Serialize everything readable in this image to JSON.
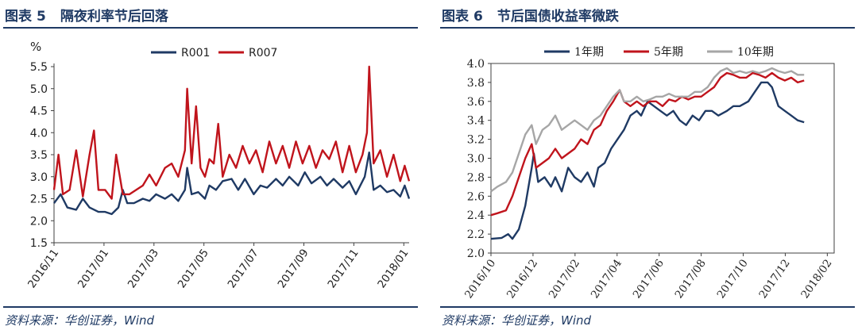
{
  "colors": {
    "navy": "#1f3a64",
    "red": "#c0141c",
    "gray": "#a6a6a6"
  },
  "charts": [
    {
      "title_prefix": "图表",
      "title_num": "5",
      "title_text": "隔夜利率节后回落",
      "source": "资料来源：华创证券，Wind"
    },
    {
      "title_prefix": "图表",
      "title_num": "6",
      "title_text": "节后国债收益率微跌",
      "source": "资料来源：华创证券，Wind"
    }
  ],
  "chart_data": [
    {
      "type": "line",
      "title": "隔夜利率节后回落",
      "ylabel": "%",
      "ylim": [
        1.5,
        5.5
      ],
      "yticks": [
        "1.5",
        "2.0",
        "2.5",
        "3.0",
        "3.5",
        "4.0",
        "4.5",
        "5.0",
        "5.5"
      ],
      "xticks": [
        "2016/11",
        "2017/01",
        "2017/03",
        "2017/05",
        "2017/07",
        "2017/09",
        "2017/11",
        "2018/01"
      ],
      "xrange": [
        0,
        16
      ],
      "grid": false,
      "legend": "top",
      "series": [
        {
          "name": "R001",
          "color": "#1f3a64",
          "points": [
            [
              0,
              2.4
            ],
            [
              0.3,
              2.6
            ],
            [
              0.6,
              2.3
            ],
            [
              1,
              2.25
            ],
            [
              1.3,
              2.5
            ],
            [
              1.6,
              2.3
            ],
            [
              2,
              2.2
            ],
            [
              2.3,
              2.2
            ],
            [
              2.6,
              2.15
            ],
            [
              2.9,
              2.3
            ],
            [
              3.1,
              2.7
            ],
            [
              3.3,
              2.4
            ],
            [
              3.6,
              2.4
            ],
            [
              4,
              2.5
            ],
            [
              4.3,
              2.45
            ],
            [
              4.6,
              2.6
            ],
            [
              5,
              2.5
            ],
            [
              5.3,
              2.6
            ],
            [
              5.6,
              2.45
            ],
            [
              5.9,
              2.7
            ],
            [
              6,
              3.2
            ],
            [
              6.2,
              2.6
            ],
            [
              6.5,
              2.65
            ],
            [
              6.8,
              2.5
            ],
            [
              7,
              2.8
            ],
            [
              7.3,
              2.7
            ],
            [
              7.6,
              2.9
            ],
            [
              8,
              2.95
            ],
            [
              8.3,
              2.7
            ],
            [
              8.6,
              2.95
            ],
            [
              9,
              2.6
            ],
            [
              9.3,
              2.8
            ],
            [
              9.6,
              2.75
            ],
            [
              10,
              2.95
            ],
            [
              10.3,
              2.8
            ],
            [
              10.6,
              3.0
            ],
            [
              11,
              2.8
            ],
            [
              11.3,
              3.1
            ],
            [
              11.6,
              2.85
            ],
            [
              12,
              3.0
            ],
            [
              12.3,
              2.8
            ],
            [
              12.6,
              2.95
            ],
            [
              13,
              2.75
            ],
            [
              13.3,
              2.9
            ],
            [
              13.6,
              2.6
            ],
            [
              14,
              3.0
            ],
            [
              14.2,
              3.55
            ],
            [
              14.4,
              2.7
            ],
            [
              14.7,
              2.8
            ],
            [
              15,
              2.65
            ],
            [
              15.3,
              2.7
            ],
            [
              15.6,
              2.55
            ],
            [
              15.8,
              2.8
            ],
            [
              16,
              2.5
            ]
          ]
        },
        {
          "name": "R007",
          "color": "#c0141c",
          "points": [
            [
              0,
              2.7
            ],
            [
              0.2,
              3.5
            ],
            [
              0.4,
              2.6
            ],
            [
              0.7,
              2.7
            ],
            [
              1,
              3.6
            ],
            [
              1.3,
              2.55
            ],
            [
              1.6,
              3.5
            ],
            [
              1.8,
              4.05
            ],
            [
              2,
              2.7
            ],
            [
              2.3,
              2.7
            ],
            [
              2.6,
              2.5
            ],
            [
              2.8,
              3.5
            ],
            [
              3.1,
              2.6
            ],
            [
              3.4,
              2.6
            ],
            [
              3.7,
              2.7
            ],
            [
              4,
              2.8
            ],
            [
              4.3,
              3.05
            ],
            [
              4.6,
              2.8
            ],
            [
              5,
              3.2
            ],
            [
              5.3,
              3.3
            ],
            [
              5.6,
              3.0
            ],
            [
              5.9,
              3.6
            ],
            [
              6,
              5.0
            ],
            [
              6.2,
              3.3
            ],
            [
              6.4,
              4.6
            ],
            [
              6.6,
              3.2
            ],
            [
              6.8,
              3.0
            ],
            [
              7,
              3.4
            ],
            [
              7.2,
              3.3
            ],
            [
              7.4,
              4.2
            ],
            [
              7.6,
              3.0
            ],
            [
              7.9,
              3.5
            ],
            [
              8.2,
              3.2
            ],
            [
              8.5,
              3.7
            ],
            [
              8.8,
              3.3
            ],
            [
              9.1,
              3.6
            ],
            [
              9.4,
              3.1
            ],
            [
              9.7,
              3.8
            ],
            [
              10,
              3.3
            ],
            [
              10.3,
              3.7
            ],
            [
              10.6,
              3.2
            ],
            [
              10.9,
              3.8
            ],
            [
              11.2,
              3.3
            ],
            [
              11.5,
              3.7
            ],
            [
              11.8,
              3.2
            ],
            [
              12.1,
              3.6
            ],
            [
              12.4,
              3.4
            ],
            [
              12.7,
              3.8
            ],
            [
              13,
              3.1
            ],
            [
              13.3,
              3.7
            ],
            [
              13.6,
              3.1
            ],
            [
              13.9,
              3.5
            ],
            [
              14.1,
              4.0
            ],
            [
              14.2,
              5.5
            ],
            [
              14.4,
              3.3
            ],
            [
              14.7,
              3.6
            ],
            [
              15,
              3.0
            ],
            [
              15.3,
              3.5
            ],
            [
              15.6,
              2.9
            ],
            [
              15.8,
              3.25
            ],
            [
              16,
              2.9
            ]
          ]
        }
      ]
    },
    {
      "type": "line",
      "title": "节后国债收益率微跌",
      "ylim": [
        2.0,
        4.0
      ],
      "yticks": [
        "2.0",
        "2.2",
        "2.4",
        "2.6",
        "2.8",
        "3.0",
        "3.2",
        "3.4",
        "3.6",
        "3.8",
        "4.0"
      ],
      "xticks": [
        "2016/10",
        "2016/12",
        "2017/02",
        "2017/04",
        "2017/06",
        "2017/08",
        "2017/10",
        "2017/12",
        "2018/02"
      ],
      "xrange": [
        0,
        16
      ],
      "grid": false,
      "legend": "top",
      "series": [
        {
          "name": "1年期",
          "color": "#1f3a64",
          "points": [
            [
              0,
              2.15
            ],
            [
              0.5,
              2.16
            ],
            [
              0.8,
              2.2
            ],
            [
              1,
              2.15
            ],
            [
              1.3,
              2.25
            ],
            [
              1.6,
              2.5
            ],
            [
              1.9,
              2.9
            ],
            [
              2,
              3.05
            ],
            [
              2.2,
              2.75
            ],
            [
              2.5,
              2.8
            ],
            [
              2.8,
              2.7
            ],
            [
              3,
              2.8
            ],
            [
              3.3,
              2.65
            ],
            [
              3.6,
              2.9
            ],
            [
              3.9,
              2.8
            ],
            [
              4.2,
              2.75
            ],
            [
              4.5,
              2.85
            ],
            [
              4.8,
              2.7
            ],
            [
              5,
              2.9
            ],
            [
              5.3,
              2.95
            ],
            [
              5.6,
              3.1
            ],
            [
              5.9,
              3.2
            ],
            [
              6.2,
              3.3
            ],
            [
              6.5,
              3.45
            ],
            [
              6.8,
              3.5
            ],
            [
              7,
              3.45
            ],
            [
              7.3,
              3.6
            ],
            [
              7.6,
              3.55
            ],
            [
              7.9,
              3.5
            ],
            [
              8.2,
              3.45
            ],
            [
              8.5,
              3.5
            ],
            [
              8.8,
              3.4
            ],
            [
              9.1,
              3.35
            ],
            [
              9.4,
              3.45
            ],
            [
              9.7,
              3.4
            ],
            [
              10,
              3.5
            ],
            [
              10.3,
              3.5
            ],
            [
              10.6,
              3.45
            ],
            [
              11,
              3.5
            ],
            [
              11.3,
              3.55
            ],
            [
              11.6,
              3.55
            ],
            [
              12,
              3.6
            ],
            [
              12.3,
              3.7
            ],
            [
              12.6,
              3.8
            ],
            [
              12.9,
              3.8
            ],
            [
              13.1,
              3.75
            ],
            [
              13.4,
              3.55
            ],
            [
              13.7,
              3.5
            ],
            [
              14,
              3.45
            ],
            [
              14.3,
              3.4
            ],
            [
              14.6,
              3.38
            ]
          ]
        },
        {
          "name": "5年期",
          "color": "#c0141c",
          "points": [
            [
              0,
              2.4
            ],
            [
              0.3,
              2.42
            ],
            [
              0.7,
              2.45
            ],
            [
              1,
              2.6
            ],
            [
              1.3,
              2.8
            ],
            [
              1.6,
              3.0
            ],
            [
              1.9,
              3.15
            ],
            [
              2.1,
              2.9
            ],
            [
              2.4,
              2.95
            ],
            [
              2.7,
              3.0
            ],
            [
              3,
              3.1
            ],
            [
              3.3,
              3.0
            ],
            [
              3.6,
              3.05
            ],
            [
              3.9,
              3.1
            ],
            [
              4.2,
              3.2
            ],
            [
              4.5,
              3.15
            ],
            [
              4.8,
              3.3
            ],
            [
              5.1,
              3.35
            ],
            [
              5.4,
              3.5
            ],
            [
              5.7,
              3.6
            ],
            [
              6,
              3.72
            ],
            [
              6.2,
              3.6
            ],
            [
              6.5,
              3.55
            ],
            [
              6.8,
              3.6
            ],
            [
              7.1,
              3.55
            ],
            [
              7.4,
              3.6
            ],
            [
              7.7,
              3.6
            ],
            [
              8,
              3.55
            ],
            [
              8.3,
              3.62
            ],
            [
              8.6,
              3.6
            ],
            [
              8.9,
              3.65
            ],
            [
              9.2,
              3.62
            ],
            [
              9.5,
              3.65
            ],
            [
              9.8,
              3.65
            ],
            [
              10.1,
              3.7
            ],
            [
              10.4,
              3.75
            ],
            [
              10.7,
              3.85
            ],
            [
              11,
              3.9
            ],
            [
              11.3,
              3.88
            ],
            [
              11.6,
              3.85
            ],
            [
              11.9,
              3.85
            ],
            [
              12.2,
              3.9
            ],
            [
              12.5,
              3.88
            ],
            [
              12.8,
              3.85
            ],
            [
              13.1,
              3.9
            ],
            [
              13.4,
              3.85
            ],
            [
              13.7,
              3.82
            ],
            [
              14,
              3.85
            ],
            [
              14.3,
              3.8
            ],
            [
              14.6,
              3.82
            ]
          ]
        },
        {
          "name": "10年期",
          "color": "#a6a6a6",
          "points": [
            [
              0,
              2.65
            ],
            [
              0.3,
              2.7
            ],
            [
              0.7,
              2.75
            ],
            [
              1,
              2.85
            ],
            [
              1.3,
              3.05
            ],
            [
              1.6,
              3.25
            ],
            [
              1.9,
              3.35
            ],
            [
              2.1,
              3.15
            ],
            [
              2.4,
              3.3
            ],
            [
              2.7,
              3.35
            ],
            [
              3,
              3.45
            ],
            [
              3.3,
              3.3
            ],
            [
              3.6,
              3.35
            ],
            [
              3.9,
              3.4
            ],
            [
              4.2,
              3.35
            ],
            [
              4.5,
              3.3
            ],
            [
              4.8,
              3.4
            ],
            [
              5.1,
              3.45
            ],
            [
              5.4,
              3.55
            ],
            [
              5.7,
              3.65
            ],
            [
              6,
              3.72
            ],
            [
              6.2,
              3.6
            ],
            [
              6.5,
              3.6
            ],
            [
              6.8,
              3.65
            ],
            [
              7.1,
              3.6
            ],
            [
              7.4,
              3.62
            ],
            [
              7.7,
              3.65
            ],
            [
              8,
              3.65
            ],
            [
              8.3,
              3.68
            ],
            [
              8.6,
              3.65
            ],
            [
              8.9,
              3.65
            ],
            [
              9.2,
              3.65
            ],
            [
              9.5,
              3.7
            ],
            [
              9.8,
              3.7
            ],
            [
              10.1,
              3.75
            ],
            [
              10.4,
              3.85
            ],
            [
              10.7,
              3.92
            ],
            [
              11,
              3.95
            ],
            [
              11.3,
              3.9
            ],
            [
              11.6,
              3.92
            ],
            [
              11.9,
              3.9
            ],
            [
              12.2,
              3.92
            ],
            [
              12.5,
              3.9
            ],
            [
              12.8,
              3.92
            ],
            [
              13.1,
              3.95
            ],
            [
              13.4,
              3.92
            ],
            [
              13.7,
              3.9
            ],
            [
              14,
              3.92
            ],
            [
              14.3,
              3.88
            ],
            [
              14.6,
              3.88
            ]
          ]
        }
      ]
    }
  ]
}
